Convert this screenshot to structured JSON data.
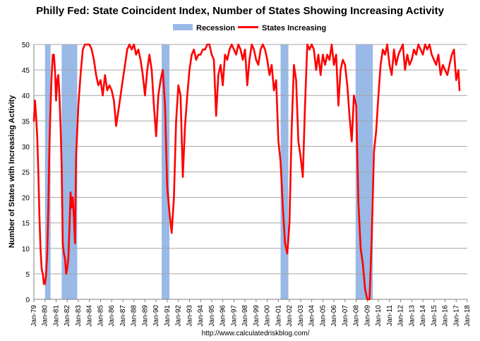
{
  "chart_data": {
    "type": "line",
    "title": "Philly Fed: State Coincident Index, Number of States Showing Increasing Activity",
    "ylabel": "Number of States with Increasing Activity",
    "xlabel": "",
    "source_text": "http://www.calculatedriskblog.com/",
    "ylim": [
      0,
      50
    ],
    "yticks": [
      0,
      5,
      10,
      15,
      20,
      25,
      30,
      35,
      40,
      45,
      50
    ],
    "xlim": [
      1979,
      2018
    ],
    "xtick_labels": [
      "Jan-79",
      "Jan-80",
      "Jan-81",
      "Jan-82",
      "Jan-83",
      "Jan-84",
      "Jan-85",
      "Jan-86",
      "Jan-87",
      "Jan-88",
      "Jan-89",
      "Jan-90",
      "Jan-91",
      "Jan-92",
      "Jan-93",
      "Jan-94",
      "Jan-95",
      "Jan-96",
      "Jan-97",
      "Jan-98",
      "Jan-99",
      "Jan-00",
      "Jan-01",
      "Jan-02",
      "Jan-03",
      "Jan-04",
      "Jan-05",
      "Jan-06",
      "Jan-07",
      "Jan-08",
      "Jan-09",
      "Jan-10",
      "Jan-11",
      "Jan-12",
      "Jan-13",
      "Jan-14",
      "Jan-15",
      "Jan-16",
      "Jan-17",
      "Jan-18"
    ],
    "grid": true,
    "legend": {
      "placement": "top-center",
      "entries": [
        {
          "label": "Recession",
          "color": "#99b9e6"
        },
        {
          "label": "States Increasing",
          "color": "#ff0000"
        }
      ]
    },
    "recessions": [
      {
        "start": 1980.0,
        "end": 1980.5
      },
      {
        "start": 1981.5,
        "end": 1982.9
      },
      {
        "start": 1990.5,
        "end": 1991.2
      },
      {
        "start": 2001.2,
        "end": 2001.9
      },
      {
        "start": 2007.95,
        "end": 2009.5
      }
    ],
    "series": [
      {
        "name": "States Increasing",
        "color": "#ff0000",
        "points": [
          [
            1979.0,
            35
          ],
          [
            1979.1,
            39
          ],
          [
            1979.2,
            36
          ],
          [
            1979.3,
            32
          ],
          [
            1979.4,
            25
          ],
          [
            1979.5,
            16
          ],
          [
            1979.6,
            10
          ],
          [
            1979.7,
            6
          ],
          [
            1979.8,
            5
          ],
          [
            1979.9,
            3
          ],
          [
            1980.0,
            3
          ],
          [
            1980.1,
            5
          ],
          [
            1980.2,
            9
          ],
          [
            1980.3,
            18
          ],
          [
            1980.4,
            30
          ],
          [
            1980.5,
            38
          ],
          [
            1980.6,
            44
          ],
          [
            1980.7,
            48
          ],
          [
            1980.8,
            48
          ],
          [
            1980.9,
            45
          ],
          [
            1981.0,
            39
          ],
          [
            1981.1,
            43
          ],
          [
            1981.2,
            44
          ],
          [
            1981.3,
            40
          ],
          [
            1981.4,
            34
          ],
          [
            1981.5,
            26
          ],
          [
            1981.6,
            11
          ],
          [
            1981.7,
            9
          ],
          [
            1981.8,
            8
          ],
          [
            1981.9,
            5
          ],
          [
            1982.0,
            6
          ],
          [
            1982.1,
            8
          ],
          [
            1982.2,
            14
          ],
          [
            1982.3,
            21
          ],
          [
            1982.4,
            18
          ],
          [
            1982.5,
            20
          ],
          [
            1982.6,
            16
          ],
          [
            1982.7,
            11
          ],
          [
            1982.8,
            28
          ],
          [
            1982.9,
            33
          ],
          [
            1983.0,
            38
          ],
          [
            1983.2,
            44
          ],
          [
            1983.4,
            49
          ],
          [
            1983.6,
            50
          ],
          [
            1983.8,
            50
          ],
          [
            1984.0,
            50
          ],
          [
            1984.2,
            49
          ],
          [
            1984.4,
            47
          ],
          [
            1984.6,
            44
          ],
          [
            1984.8,
            42
          ],
          [
            1985.0,
            43
          ],
          [
            1985.2,
            40
          ],
          [
            1985.4,
            44
          ],
          [
            1985.6,
            41
          ],
          [
            1985.8,
            42
          ],
          [
            1986.0,
            41
          ],
          [
            1986.2,
            39
          ],
          [
            1986.4,
            34
          ],
          [
            1986.6,
            37
          ],
          [
            1986.8,
            40
          ],
          [
            1987.0,
            43
          ],
          [
            1987.2,
            46
          ],
          [
            1987.4,
            49
          ],
          [
            1987.6,
            50
          ],
          [
            1987.8,
            49
          ],
          [
            1988.0,
            50
          ],
          [
            1988.2,
            48
          ],
          [
            1988.4,
            49
          ],
          [
            1988.6,
            47
          ],
          [
            1988.8,
            44
          ],
          [
            1989.0,
            40
          ],
          [
            1989.2,
            45
          ],
          [
            1989.4,
            48
          ],
          [
            1989.6,
            45
          ],
          [
            1989.8,
            38
          ],
          [
            1990.0,
            32
          ],
          [
            1990.2,
            40
          ],
          [
            1990.4,
            43
          ],
          [
            1990.6,
            45
          ],
          [
            1990.8,
            38
          ],
          [
            1991.0,
            22
          ],
          [
            1991.2,
            17
          ],
          [
            1991.4,
            13
          ],
          [
            1991.6,
            20
          ],
          [
            1991.8,
            35
          ],
          [
            1992.0,
            42
          ],
          [
            1992.2,
            40
          ],
          [
            1992.4,
            24
          ],
          [
            1992.6,
            34
          ],
          [
            1992.8,
            40
          ],
          [
            1993.0,
            45
          ],
          [
            1993.2,
            48
          ],
          [
            1993.4,
            49
          ],
          [
            1993.6,
            47
          ],
          [
            1993.8,
            48
          ],
          [
            1994.0,
            48
          ],
          [
            1994.2,
            49
          ],
          [
            1994.4,
            49
          ],
          [
            1994.6,
            50
          ],
          [
            1994.8,
            50
          ],
          [
            1995.0,
            48
          ],
          [
            1995.2,
            47
          ],
          [
            1995.4,
            36
          ],
          [
            1995.6,
            44
          ],
          [
            1995.8,
            46
          ],
          [
            1996.0,
            42
          ],
          [
            1996.2,
            48
          ],
          [
            1996.4,
            47
          ],
          [
            1996.6,
            49
          ],
          [
            1996.8,
            50
          ],
          [
            1997.0,
            49
          ],
          [
            1997.2,
            48
          ],
          [
            1997.4,
            50
          ],
          [
            1997.6,
            49
          ],
          [
            1997.8,
            47
          ],
          [
            1998.0,
            49
          ],
          [
            1998.2,
            42
          ],
          [
            1998.4,
            47
          ],
          [
            1998.6,
            50
          ],
          [
            1998.8,
            49
          ],
          [
            1999.0,
            47
          ],
          [
            1999.2,
            46
          ],
          [
            1999.4,
            49
          ],
          [
            1999.6,
            50
          ],
          [
            1999.8,
            49
          ],
          [
            2000.0,
            47
          ],
          [
            2000.2,
            44
          ],
          [
            2000.4,
            46
          ],
          [
            2000.6,
            41
          ],
          [
            2000.8,
            43
          ],
          [
            2001.0,
            31
          ],
          [
            2001.2,
            27
          ],
          [
            2001.4,
            18
          ],
          [
            2001.6,
            11
          ],
          [
            2001.8,
            9
          ],
          [
            2002.0,
            15
          ],
          [
            2002.2,
            34
          ],
          [
            2002.4,
            46
          ],
          [
            2002.6,
            43
          ],
          [
            2002.8,
            31
          ],
          [
            2003.0,
            28
          ],
          [
            2003.2,
            24
          ],
          [
            2003.4,
            38
          ],
          [
            2003.6,
            50
          ],
          [
            2003.8,
            49
          ],
          [
            2004.0,
            50
          ],
          [
            2004.2,
            49
          ],
          [
            2004.4,
            45
          ],
          [
            2004.6,
            48
          ],
          [
            2004.8,
            44
          ],
          [
            2005.0,
            48
          ],
          [
            2005.2,
            46
          ],
          [
            2005.4,
            48
          ],
          [
            2005.6,
            47
          ],
          [
            2005.8,
            50
          ],
          [
            2006.0,
            46
          ],
          [
            2006.2,
            48
          ],
          [
            2006.4,
            38
          ],
          [
            2006.6,
            45
          ],
          [
            2006.8,
            47
          ],
          [
            2007.0,
            46
          ],
          [
            2007.2,
            42
          ],
          [
            2007.4,
            36
          ],
          [
            2007.6,
            31
          ],
          [
            2007.8,
            40
          ],
          [
            2008.0,
            38
          ],
          [
            2008.2,
            19
          ],
          [
            2008.4,
            10
          ],
          [
            2008.6,
            7
          ],
          [
            2008.8,
            2
          ],
          [
            2009.0,
            0
          ],
          [
            2009.2,
            0
          ],
          [
            2009.4,
            12
          ],
          [
            2009.6,
            29
          ],
          [
            2009.8,
            33
          ],
          [
            2010.0,
            40
          ],
          [
            2010.2,
            46
          ],
          [
            2010.4,
            49
          ],
          [
            2010.6,
            48
          ],
          [
            2010.8,
            50
          ],
          [
            2011.0,
            46
          ],
          [
            2011.2,
            44
          ],
          [
            2011.4,
            49
          ],
          [
            2011.6,
            46
          ],
          [
            2011.8,
            48
          ],
          [
            2012.0,
            49
          ],
          [
            2012.2,
            50
          ],
          [
            2012.4,
            45
          ],
          [
            2012.6,
            48
          ],
          [
            2012.8,
            46
          ],
          [
            2013.0,
            47
          ],
          [
            2013.2,
            49
          ],
          [
            2013.4,
            48
          ],
          [
            2013.6,
            50
          ],
          [
            2013.8,
            49
          ],
          [
            2014.0,
            48
          ],
          [
            2014.2,
            50
          ],
          [
            2014.4,
            49
          ],
          [
            2014.6,
            50
          ],
          [
            2014.8,
            48
          ],
          [
            2015.0,
            47
          ],
          [
            2015.2,
            46
          ],
          [
            2015.4,
            48
          ],
          [
            2015.6,
            44
          ],
          [
            2015.8,
            46
          ],
          [
            2016.0,
            45
          ],
          [
            2016.2,
            44
          ],
          [
            2016.4,
            46
          ],
          [
            2016.6,
            48
          ],
          [
            2016.8,
            49
          ],
          [
            2017.0,
            43
          ],
          [
            2017.2,
            45
          ],
          [
            2017.3,
            41
          ]
        ]
      }
    ]
  }
}
